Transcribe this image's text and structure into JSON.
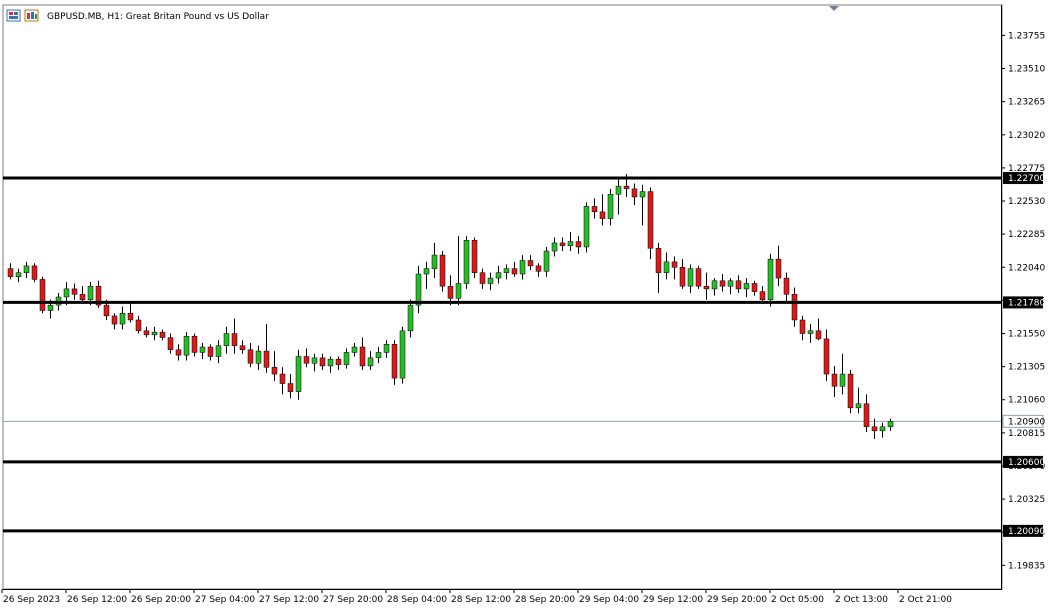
{
  "header": {
    "icons": [
      "chart-window-icon",
      "indicators-icon"
    ],
    "title": "GBPUSD.MB, H1:  Great Britan Pound vs US Dollar"
  },
  "chart_data": {
    "type": "candlestick",
    "symbol": "GBPUSD.MB",
    "timeframe": "H1",
    "description": "Great Britan Pound vs US Dollar",
    "ylim": [
      1.1966,
      1.2398
    ],
    "y_ticks": [
      "1.23755",
      "1.23510",
      "1.23265",
      "1.23020",
      "1.22775",
      "1.22530",
      "1.22285",
      "1.22040",
      "1.21795",
      "1.21550",
      "1.21305",
      "1.21060",
      "1.20815",
      "1.20570",
      "1.20325",
      "1.20080",
      "1.19835"
    ],
    "x_ticks": [
      "26 Sep 2023",
      "26 Sep 12:00",
      "26 Sep 20:00",
      "27 Sep 04:00",
      "27 Sep 12:00",
      "27 Sep 20:00",
      "28 Sep 04:00",
      "28 Sep 12:00",
      "28 Sep 20:00",
      "29 Sep 04:00",
      "29 Sep 12:00",
      "29 Sep 20:00",
      "2 Oct 05:00",
      "2 Oct 13:00",
      "2 Oct 21:00"
    ],
    "horizontal_levels": [
      {
        "value": 1.227,
        "label": "1.22700"
      },
      {
        "value": 1.2178,
        "label": "1.21780"
      },
      {
        "value": 1.206,
        "label": "1.20600"
      },
      {
        "value": 1.2009,
        "label": "1.20090"
      }
    ],
    "current_price": {
      "value": 1.209,
      "label": "1.20900"
    },
    "colors": {
      "bull": "#22c022",
      "bear": "#e01818",
      "wick": "#000000",
      "level": "#000000",
      "current_line": "#8fa3b3"
    },
    "candles": [
      [
        1.2203,
        1.2207,
        1.2195,
        1.2197
      ],
      [
        1.2197,
        1.2203,
        1.2193,
        1.22
      ],
      [
        1.22,
        1.2208,
        1.2196,
        1.2205
      ],
      [
        1.2205,
        1.2207,
        1.2193,
        1.2195
      ],
      [
        1.2195,
        1.2197,
        1.217,
        1.2172
      ],
      [
        1.2172,
        1.218,
        1.2166,
        1.2176
      ],
      [
        1.2176,
        1.2185,
        1.2172,
        1.2182
      ],
      [
        1.2182,
        1.2193,
        1.2176,
        1.2188
      ],
      [
        1.2188,
        1.2192,
        1.218,
        1.2184
      ],
      [
        1.2184,
        1.219,
        1.2178,
        1.218
      ],
      [
        1.218,
        1.2193,
        1.2176,
        1.219
      ],
      [
        1.219,
        1.2194,
        1.2174,
        1.2176
      ],
      [
        1.2176,
        1.218,
        1.2165,
        1.2168
      ],
      [
        1.2168,
        1.217,
        1.2158,
        1.2162
      ],
      [
        1.2162,
        1.2175,
        1.2158,
        1.217
      ],
      [
        1.217,
        1.2178,
        1.2163,
        1.2165
      ],
      [
        1.2165,
        1.2168,
        1.2155,
        1.2157
      ],
      [
        1.2157,
        1.216,
        1.2152,
        1.2154
      ],
      [
        1.2154,
        1.216,
        1.215,
        1.2156
      ],
      [
        1.2156,
        1.2158,
        1.215,
        1.2152
      ],
      [
        1.2152,
        1.2155,
        1.214,
        1.2143
      ],
      [
        1.2143,
        1.2147,
        1.2135,
        1.2139
      ],
      [
        1.2139,
        1.2156,
        1.2135,
        1.2153
      ],
      [
        1.2153,
        1.2155,
        1.2138,
        1.2141
      ],
      [
        1.2141,
        1.2148,
        1.2136,
        1.2145
      ],
      [
        1.2145,
        1.2147,
        1.2135,
        1.2138
      ],
      [
        1.2138,
        1.215,
        1.2133,
        1.2146
      ],
      [
        1.2146,
        1.216,
        1.214,
        1.2155
      ],
      [
        1.2155,
        1.2166,
        1.214,
        1.2146
      ],
      [
        1.2146,
        1.215,
        1.214,
        1.2143
      ],
      [
        1.2143,
        1.2148,
        1.213,
        1.2133
      ],
      [
        1.2133,
        1.2146,
        1.2128,
        1.2142
      ],
      [
        1.2142,
        1.2162,
        1.2126,
        1.213
      ],
      [
        1.213,
        1.2142,
        1.212,
        1.2125
      ],
      [
        1.2125,
        1.213,
        1.211,
        1.2118
      ],
      [
        1.2118,
        1.2125,
        1.2107,
        1.2112
      ],
      [
        1.2112,
        1.2143,
        1.2106,
        1.2138
      ],
      [
        1.2138,
        1.2144,
        1.213,
        1.2133
      ],
      [
        1.2133,
        1.214,
        1.2127,
        1.2137
      ],
      [
        1.2137,
        1.214,
        1.2128,
        1.2131
      ],
      [
        1.2131,
        1.2138,
        1.2126,
        1.2136
      ],
      [
        1.2136,
        1.2138,
        1.2128,
        1.2132
      ],
      [
        1.2132,
        1.2144,
        1.2129,
        1.2141
      ],
      [
        1.2141,
        1.2148,
        1.2138,
        1.2145
      ],
      [
        1.2145,
        1.2152,
        1.2128,
        1.2131
      ],
      [
        1.2131,
        1.2142,
        1.2128,
        1.2137
      ],
      [
        1.2137,
        1.2145,
        1.2133,
        1.2141
      ],
      [
        1.2141,
        1.215,
        1.2137,
        1.2147
      ],
      [
        1.2147,
        1.215,
        1.2117,
        1.2122
      ],
      [
        1.2122,
        1.216,
        1.2118,
        1.2157
      ],
      [
        1.2157,
        1.218,
        1.2152,
        1.2176
      ],
      [
        1.2176,
        1.2205,
        1.217,
        1.2199
      ],
      [
        1.2199,
        1.2208,
        1.2188,
        1.2203
      ],
      [
        1.2203,
        1.2222,
        1.2196,
        1.2213
      ],
      [
        1.2213,
        1.2216,
        1.2186,
        1.219
      ],
      [
        1.219,
        1.2198,
        1.2176,
        1.2181
      ],
      [
        1.2181,
        1.2227,
        1.2176,
        1.2192
      ],
      [
        1.2192,
        1.2227,
        1.2188,
        1.2224
      ],
      [
        1.2224,
        1.2226,
        1.2196,
        1.22
      ],
      [
        1.22,
        1.2203,
        1.2188,
        1.2192
      ],
      [
        1.2192,
        1.22,
        1.2187,
        1.2196
      ],
      [
        1.2196,
        1.2205,
        1.2192,
        1.22
      ],
      [
        1.22,
        1.2206,
        1.2195,
        1.2203
      ],
      [
        1.2203,
        1.2208,
        1.2197,
        1.2199
      ],
      [
        1.2199,
        1.2213,
        1.2195,
        1.2209
      ],
      [
        1.2209,
        1.2213,
        1.2202,
        1.2205
      ],
      [
        1.2205,
        1.2207,
        1.2197,
        1.2201
      ],
      [
        1.2201,
        1.2219,
        1.2197,
        1.2216
      ],
      [
        1.2216,
        1.2226,
        1.2212,
        1.2222
      ],
      [
        1.2222,
        1.2226,
        1.2216,
        1.222
      ],
      [
        1.222,
        1.223,
        1.2216,
        1.2223
      ],
      [
        1.2223,
        1.2227,
        1.2214,
        1.2219
      ],
      [
        1.2219,
        1.2252,
        1.2215,
        1.2249
      ],
      [
        1.2249,
        1.2255,
        1.224,
        1.2245
      ],
      [
        1.2245,
        1.2258,
        1.2235,
        1.224
      ],
      [
        1.224,
        1.2262,
        1.2235,
        1.2258
      ],
      [
        1.2258,
        1.227,
        1.2243,
        1.2264
      ],
      [
        1.2264,
        1.2273,
        1.2256,
        1.2262
      ],
      [
        1.2262,
        1.2266,
        1.225,
        1.2256
      ],
      [
        1.2256,
        1.2265,
        1.2235,
        1.226
      ],
      [
        1.226,
        1.2263,
        1.221,
        1.2218
      ],
      [
        1.2218,
        1.2222,
        1.2185,
        1.22
      ],
      [
        1.22,
        1.2215,
        1.2195,
        1.2208
      ],
      [
        1.2208,
        1.2212,
        1.2195,
        1.2204
      ],
      [
        1.2204,
        1.221,
        1.2188,
        1.219
      ],
      [
        1.219,
        1.2206,
        1.2185,
        1.2203
      ],
      [
        1.2203,
        1.2205,
        1.2188,
        1.219
      ],
      [
        1.219,
        1.22,
        1.218,
        1.2188
      ],
      [
        1.2188,
        1.2196,
        1.2183,
        1.2194
      ],
      [
        1.2194,
        1.2199,
        1.2186,
        1.219
      ],
      [
        1.219,
        1.2196,
        1.2184,
        1.2194
      ],
      [
        1.2194,
        1.2198,
        1.2185,
        1.2188
      ],
      [
        1.2188,
        1.2196,
        1.2182,
        1.2192
      ],
      [
        1.2192,
        1.2194,
        1.2183,
        1.2186
      ],
      [
        1.2186,
        1.219,
        1.2177,
        1.218
      ],
      [
        1.218,
        1.2214,
        1.2175,
        1.221
      ],
      [
        1.221,
        1.222,
        1.219,
        1.2196
      ],
      [
        1.2196,
        1.22,
        1.2178,
        1.2184
      ],
      [
        1.2184,
        1.2189,
        1.216,
        1.2165
      ],
      [
        1.2165,
        1.2168,
        1.215,
        1.2155
      ],
      [
        1.2155,
        1.2162,
        1.2148,
        1.2157
      ],
      [
        1.2157,
        1.2166,
        1.215,
        1.2151
      ],
      [
        1.2151,
        1.2158,
        1.212,
        1.2125
      ],
      [
        1.2125,
        1.2131,
        1.2108,
        1.2116
      ],
      [
        1.2116,
        1.214,
        1.211,
        1.2125
      ],
      [
        1.2125,
        1.2128,
        1.2096,
        1.21
      ],
      [
        1.21,
        1.2115,
        1.2096,
        1.2103
      ],
      [
        1.2103,
        1.211,
        1.2082,
        1.2086
      ],
      [
        1.2086,
        1.2092,
        1.2077,
        1.2083
      ],
      [
        1.2083,
        1.2089,
        1.2078,
        1.2086
      ],
      [
        1.2086,
        1.2092,
        1.2083,
        1.209
      ]
    ]
  }
}
